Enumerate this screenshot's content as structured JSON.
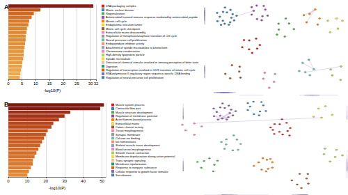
{
  "chart_data": [
    {
      "type": "bar",
      "title": "A",
      "orientation": "horizontal",
      "grid": true,
      "x_label": "-log10(P)",
      "categories": [
        "DNA packaging complex",
        "Mitotic nuclear division",
        "Regionalization",
        "Antimicrobial humoral immune response mediated by antimicrobial peptide",
        "Meiotic cell cycle",
        "Endoplasmic reticulum lumen",
        "Mitotic cell cycle checkpoint",
        "Extracellular matrix disassembly",
        "Regulation of metaphase/anaphase transition of cell cycle",
        "Neural precursor cell proliferation",
        "Endopeptidase inhibitor activity",
        "Attachment of spindle microtubules to kinetochore",
        "Chromosome condensation",
        "High-density lipoprotein particle",
        "Spindle microtubule",
        "Detection of chemical stimulus involved in sensory perception of bitter taste",
        "Digestion",
        "Regulation of transcription involved in G1/S transition of mitotic cell cycle",
        "RNA polymerase II regulatory region sequence-specific DNA binding",
        "Regulation of neural precursor cell proliferation"
      ],
      "values": [
        31,
        11.7,
        9.3,
        8.5,
        7.6,
        7.3,
        6.8,
        6.6,
        6.3,
        6.3,
        6.1,
        5.9,
        5.6,
        5.6,
        5.4,
        5.1,
        4.9,
        4.6,
        4.4,
        4.2
      ],
      "colors": [
        "#8e1b12",
        "#c45a1f",
        "#cf6a24",
        "#d57328",
        "#d97b2c",
        "#db7f2e",
        "#de8531",
        "#df8833",
        "#e08b35",
        "#e08b35",
        "#e28e37",
        "#e39139",
        "#e5953c",
        "#e5953c",
        "#e6983e",
        "#e89c41",
        "#e9a044",
        "#eba447",
        "#eca74a",
        "#eeab4e"
      ],
      "xlim": [
        0,
        32
      ],
      "xticks": [
        0,
        5,
        10,
        15,
        20,
        25,
        30
      ]
    },
    {
      "type": "bar",
      "title": "B",
      "orientation": "horizontal",
      "grid": true,
      "x_label": "-log10(P)",
      "categories": [
        "Muscle system process",
        "Contractile fiber part",
        "Muscle structure development",
        "Regulation of membrane potential",
        "Actin filament-based process",
        "Extracellular matrix",
        "Cation channel activity",
        "Tissue morphogenesis",
        "Synaptic membrane",
        "Calcium ion binding",
        "Ion homeostasis",
        "Skeletal muscle tissue development",
        "Blood vessel morphogenesis",
        "Smooth muscle contraction",
        "Membrane depolarization during action potential",
        "Trans-synaptic signaling",
        "Membrane repolarization",
        "Response to inorganic substance",
        "Cellular response to growth factor stimulus",
        "Sarcolemma"
      ],
      "values": [
        51,
        49,
        33,
        30,
        27,
        24,
        23,
        21,
        20,
        19,
        18,
        17,
        16,
        15,
        14,
        13,
        13,
        12,
        11,
        10
      ],
      "colors": [
        "#7f1a12",
        "#821c12",
        "#9c2c15",
        "#a53216",
        "#ae3a18",
        "#b8441a",
        "#bd491b",
        "#c3511d",
        "#c6541e",
        "#c9581f",
        "#cc5d21",
        "#cf6223",
        "#d26725",
        "#d56c27",
        "#d8722a",
        "#db782d",
        "#db782d",
        "#de7e30",
        "#e18533",
        "#e48c37"
      ],
      "xlim": [
        0,
        52
      ],
      "xticks": [
        0,
        10,
        20,
        30,
        40,
        50
      ]
    }
  ]
}
